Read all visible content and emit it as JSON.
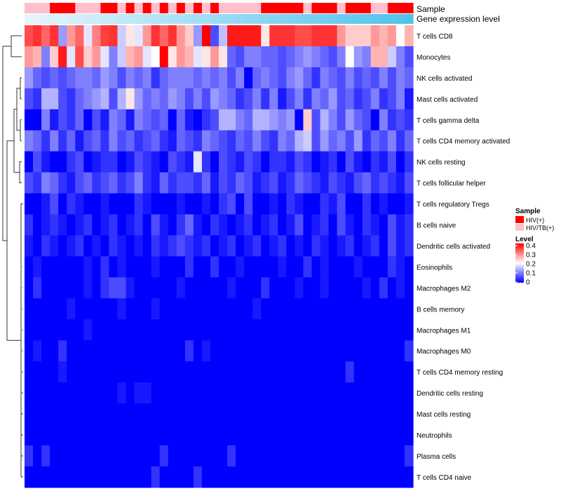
{
  "chart_data": {
    "type": "heatmap",
    "title": "",
    "annotation_tracks": [
      {
        "name": "Sample"
      },
      {
        "name": "Gene expression level"
      }
    ],
    "rows": [
      "T cells CD8",
      "Monocytes",
      "NK cells activated",
      "Mast cells activated",
      "T cells gamma delta",
      "T cells CD4 memory activated",
      "NK cells resting",
      "T cells follicular helper",
      "T cells regulatory  Tregs",
      "B cells naive",
      "Dendritic cells activated",
      "Eosinophils",
      "Macrophages M2",
      "B cells memory",
      "Macrophages M1",
      "Macrophages M0",
      "T cells CD4 memory resting",
      "Dendritic cells resting",
      "Mast cells resting",
      "Neutrophils",
      "Plasma cells",
      "T cells CD4 naive"
    ],
    "n_samples": 46,
    "sample_groups": [
      "TB",
      "TB",
      "TB",
      "HIV",
      "HIV",
      "HIV",
      "TB",
      "TB",
      "TB",
      "HIV",
      "HIV",
      "TB",
      "HIV",
      "TB",
      "HIV",
      "TB",
      "HIV",
      "TB",
      "HIV",
      "TB",
      "HIV",
      "TB",
      "HIV",
      "TB",
      "TB",
      "TB",
      "TB",
      "TB",
      "HIV",
      "HIV",
      "HIV",
      "HIV",
      "HIV",
      "TB",
      "HIV",
      "HIV",
      "HIV",
      "TB",
      "HIV",
      "HIV",
      "HIV",
      "TB",
      "TB",
      "HIV",
      "HIV",
      "HIV"
    ],
    "legend_sample": {
      "title": "Sample",
      "entries": [
        {
          "label": "HIV(+)",
          "color": "#ff0000"
        },
        {
          "label": "HIV/TB(+)",
          "color": "#ffc0cb"
        }
      ]
    },
    "legend_level": {
      "title": "Level",
      "ticks": [
        "0.4",
        "0.3",
        "0.2",
        "0.1",
        "0"
      ],
      "range": [
        0,
        0.4
      ],
      "colors": {
        "low": "#0000ff",
        "mid": "#ffffff",
        "high": "#ff0000"
      }
    },
    "row_levels": {
      "T cells CD8": [
        0.34,
        0.36,
        0.32,
        0.36,
        0.12,
        0.28,
        0.32,
        0.18,
        0.3,
        0.35,
        0.36,
        0.16,
        0.22,
        0.18,
        0.28,
        0.36,
        0.32,
        0.36,
        0.28,
        0.24,
        0.12,
        0.4,
        0.06,
        0.15,
        0.38,
        0.38,
        0.38,
        0.38,
        0.22,
        0.36,
        0.36,
        0.36,
        0.34,
        0.34,
        0.36,
        0.36,
        0.36,
        0.28,
        0.24,
        0.24,
        0.24,
        0.28,
        0.26,
        0.28,
        0.2,
        0.26
      ],
      "Monocytes": [
        0.28,
        0.26,
        0.1,
        0.24,
        0.38,
        0.18,
        0.34,
        0.24,
        0.28,
        0.18,
        0.1,
        0.16,
        0.26,
        0.28,
        0.18,
        0.2,
        0.4,
        0.22,
        0.28,
        0.26,
        0.18,
        0.22,
        0.28,
        0.22,
        0.08,
        0.06,
        0.1,
        0.1,
        0.08,
        0.08,
        0.06,
        0.08,
        0.1,
        0.12,
        0.1,
        0.08,
        0.06,
        0.1,
        0.2,
        0.12,
        0.1,
        0.26,
        0.26,
        0.16,
        0.1,
        0.06
      ],
      "NK cells activated": [
        0.12,
        0.08,
        0.06,
        0.08,
        0.06,
        0.08,
        0.1,
        0.1,
        0.08,
        0.12,
        0.1,
        0.06,
        0.1,
        0.08,
        0.1,
        0.04,
        0.08,
        0.1,
        0.1,
        0.1,
        0.08,
        0.1,
        0.08,
        0.1,
        0.06,
        0.1,
        0.0,
        0.08,
        0.1,
        0.08,
        0.06,
        0.1,
        0.12,
        0.08,
        0.04,
        0.1,
        0.08,
        0.06,
        0.1,
        0.06,
        0.08,
        0.06,
        0.1,
        0.06,
        0.1,
        0.08
      ],
      "Mast cells activated": [
        0.06,
        0.04,
        0.14,
        0.14,
        0.06,
        0.04,
        0.08,
        0.1,
        0.12,
        0.14,
        0.06,
        0.14,
        0.22,
        0.12,
        0.08,
        0.1,
        0.08,
        0.12,
        0.1,
        0.06,
        0.1,
        0.06,
        0.12,
        0.1,
        0.08,
        0.04,
        0.06,
        0.1,
        0.04,
        0.1,
        0.02,
        0.06,
        0.1,
        0.04,
        0.1,
        0.08,
        0.12,
        0.06,
        0.08,
        0.04,
        0.06,
        0.1,
        0.04,
        0.06,
        0.1,
        0.02
      ],
      "T cells gamma delta": [
        0.0,
        0.0,
        0.1,
        0.02,
        0.06,
        0.04,
        0.08,
        0.0,
        0.06,
        0.02,
        0.1,
        0.08,
        0.02,
        0.1,
        0.08,
        0.06,
        0.08,
        0.0,
        0.08,
        0.02,
        0.0,
        0.04,
        0.06,
        0.14,
        0.14,
        0.1,
        0.08,
        0.14,
        0.14,
        0.12,
        0.1,
        0.12,
        0.0,
        0.24,
        0.06,
        0.14,
        0.1,
        0.06,
        0.12,
        0.08,
        0.06,
        0.0,
        0.1,
        0.04,
        0.06,
        0.04
      ],
      "T cells CD4 memory activated": [
        0.1,
        0.08,
        0.04,
        0.1,
        0.04,
        0.08,
        0.02,
        0.06,
        0.08,
        0.04,
        0.1,
        0.06,
        0.08,
        0.04,
        0.06,
        0.08,
        0.04,
        0.02,
        0.08,
        0.06,
        0.04,
        0.1,
        0.08,
        0.06,
        0.04,
        0.08,
        0.06,
        0.1,
        0.06,
        0.04,
        0.1,
        0.08,
        0.14,
        0.16,
        0.06,
        0.12,
        0.08,
        0.1,
        0.06,
        0.12,
        0.04,
        0.08,
        0.06,
        0.1,
        0.04,
        0.08
      ],
      "NK cells resting": [
        0.0,
        0.06,
        0.02,
        0.0,
        0.0,
        0.04,
        0.06,
        0.0,
        0.02,
        0.04,
        0.04,
        0.0,
        0.02,
        0.06,
        0.04,
        0.02,
        0.0,
        0.06,
        0.04,
        0.02,
        0.18,
        0.04,
        0.0,
        0.06,
        0.04,
        0.02,
        0.06,
        0.04,
        0.0,
        0.04,
        0.04,
        0.02,
        0.06,
        0.04,
        0.0,
        0.02,
        0.04,
        0.0,
        0.06,
        0.02,
        0.0,
        0.04,
        0.02,
        0.06,
        0.0,
        0.04
      ],
      "T cells follicular helper": [
        0.06,
        0.04,
        0.1,
        0.08,
        0.04,
        0.02,
        0.06,
        0.08,
        0.04,
        0.06,
        0.08,
        0.04,
        0.06,
        0.1,
        0.04,
        0.02,
        0.08,
        0.04,
        0.06,
        0.06,
        0.04,
        0.08,
        0.02,
        0.06,
        0.04,
        0.08,
        0.06,
        0.02,
        0.04,
        0.06,
        0.02,
        0.04,
        0.08,
        0.06,
        0.04,
        0.02,
        0.06,
        0.04,
        0.02,
        0.06,
        0.08,
        0.04,
        0.06,
        0.04,
        0.02,
        0.06
      ],
      "T cells regulatory  Tregs": [
        0.0,
        0.0,
        0.02,
        0.06,
        0.0,
        0.04,
        0.02,
        0.0,
        0.0,
        0.02,
        0.0,
        0.0,
        0.0,
        0.04,
        0.02,
        0.0,
        0.0,
        0.0,
        0.02,
        0.0,
        0.0,
        0.02,
        0.0,
        0.04,
        0.06,
        0.0,
        0.06,
        0.0,
        0.0,
        0.02,
        0.0,
        0.04,
        0.02,
        0.0,
        0.0,
        0.04,
        0.02,
        0.06,
        0.0,
        0.0,
        0.04,
        0.0,
        0.02,
        0.0,
        0.0,
        0.02
      ],
      "B cells naive": [
        0.04,
        0.0,
        0.02,
        0.04,
        0.02,
        0.0,
        0.02,
        0.04,
        0.0,
        0.02,
        0.04,
        0.0,
        0.02,
        0.04,
        0.0,
        0.06,
        0.02,
        0.0,
        0.04,
        0.08,
        0.02,
        0.0,
        0.04,
        0.02,
        0.0,
        0.02,
        0.04,
        0.0,
        0.02,
        0.04,
        0.0,
        0.02,
        0.06,
        0.0,
        0.02,
        0.04,
        0.0,
        0.06,
        0.02,
        0.0,
        0.04,
        0.02,
        0.0,
        0.06,
        0.02,
        0.04
      ],
      "Dendritic cells activated": [
        0.02,
        0.0,
        0.04,
        0.02,
        0.0,
        0.02,
        0.04,
        0.0,
        0.02,
        0.0,
        0.04,
        0.02,
        0.0,
        0.02,
        0.0,
        0.04,
        0.02,
        0.04,
        0.06,
        0.04,
        0.02,
        0.04,
        0.0,
        0.02,
        0.04,
        0.0,
        0.02,
        0.04,
        0.0,
        0.02,
        0.04,
        0.0,
        0.02,
        0.0,
        0.04,
        0.02,
        0.0,
        0.02,
        0.04,
        0.0,
        0.02,
        0.04,
        0.0,
        0.06,
        0.02,
        0.04
      ],
      "Eosinophils": [
        0.0,
        0.02,
        0.0,
        0.0,
        0.0,
        0.0,
        0.0,
        0.02,
        0.0,
        0.04,
        0.0,
        0.02,
        0.0,
        0.0,
        0.0,
        0.02,
        0.0,
        0.0,
        0.0,
        0.04,
        0.0,
        0.0,
        0.04,
        0.0,
        0.0,
        0.02,
        0.0,
        0.0,
        0.0,
        0.0,
        0.02,
        0.0,
        0.0,
        0.04,
        0.0,
        0.02,
        0.0,
        0.0,
        0.0,
        0.02,
        0.0,
        0.0,
        0.0,
        0.04,
        0.02,
        0.0
      ],
      "Macrophages M2": [
        0.0,
        0.04,
        0.0,
        0.0,
        0.0,
        0.0,
        0.0,
        0.02,
        0.0,
        0.04,
        0.06,
        0.06,
        0.02,
        0.0,
        0.0,
        0.0,
        0.0,
        0.0,
        0.02,
        0.0,
        0.0,
        0.0,
        0.0,
        0.0,
        0.02,
        0.0,
        0.0,
        0.0,
        0.04,
        0.0,
        0.0,
        0.0,
        0.02,
        0.0,
        0.0,
        0.02,
        0.0,
        0.0,
        0.0,
        0.0,
        0.02,
        0.0,
        0.04,
        0.0,
        0.02,
        0.0
      ],
      "B cells memory": [
        0.0,
        0.0,
        0.0,
        0.0,
        0.0,
        0.02,
        0.0,
        0.0,
        0.0,
        0.0,
        0.0,
        0.02,
        0.0,
        0.0,
        0.0,
        0.02,
        0.0,
        0.0,
        0.0,
        0.0,
        0.0,
        0.0,
        0.0,
        0.0,
        0.0,
        0.0,
        0.0,
        0.02,
        0.0,
        0.0,
        0.0,
        0.0,
        0.0,
        0.0,
        0.0,
        0.0,
        0.0,
        0.0,
        0.0,
        0.0,
        0.0,
        0.0,
        0.0,
        0.0,
        0.0,
        0.0
      ],
      "Macrophages M1": [
        0.0,
        0.0,
        0.0,
        0.0,
        0.0,
        0.0,
        0.0,
        0.02,
        0.0,
        0.0,
        0.0,
        0.0,
        0.0,
        0.0,
        0.0,
        0.0,
        0.0,
        0.0,
        0.0,
        0.0,
        0.0,
        0.0,
        0.0,
        0.0,
        0.0,
        0.0,
        0.0,
        0.0,
        0.0,
        0.0,
        0.0,
        0.0,
        0.0,
        0.0,
        0.0,
        0.0,
        0.0,
        0.0,
        0.0,
        0.0,
        0.0,
        0.0,
        0.0,
        0.0,
        0.0,
        0.0
      ],
      "Macrophages M0": [
        0.0,
        0.02,
        0.0,
        0.0,
        0.04,
        0.0,
        0.0,
        0.0,
        0.0,
        0.0,
        0.0,
        0.0,
        0.0,
        0.0,
        0.0,
        0.0,
        0.0,
        0.0,
        0.0,
        0.04,
        0.0,
        0.02,
        0.0,
        0.0,
        0.0,
        0.0,
        0.0,
        0.0,
        0.0,
        0.0,
        0.0,
        0.0,
        0.0,
        0.0,
        0.0,
        0.0,
        0.0,
        0.0,
        0.0,
        0.0,
        0.0,
        0.0,
        0.0,
        0.0,
        0.0,
        0.04
      ],
      "T cells CD4 memory resting": [
        0.0,
        0.0,
        0.0,
        0.0,
        0.02,
        0.0,
        0.0,
        0.0,
        0.0,
        0.0,
        0.0,
        0.0,
        0.0,
        0.0,
        0.0,
        0.0,
        0.0,
        0.0,
        0.0,
        0.0,
        0.0,
        0.0,
        0.0,
        0.0,
        0.0,
        0.0,
        0.0,
        0.0,
        0.0,
        0.0,
        0.0,
        0.0,
        0.0,
        0.0,
        0.0,
        0.0,
        0.0,
        0.0,
        0.04,
        0.0,
        0.0,
        0.0,
        0.0,
        0.0,
        0.0,
        0.0
      ],
      "Dendritic cells resting": [
        0.0,
        0.0,
        0.0,
        0.0,
        0.0,
        0.0,
        0.0,
        0.0,
        0.0,
        0.0,
        0.0,
        0.02,
        0.0,
        0.02,
        0.02,
        0.0,
        0.0,
        0.0,
        0.0,
        0.0,
        0.0,
        0.0,
        0.0,
        0.0,
        0.0,
        0.0,
        0.0,
        0.0,
        0.0,
        0.0,
        0.0,
        0.0,
        0.0,
        0.0,
        0.0,
        0.0,
        0.0,
        0.0,
        0.0,
        0.0,
        0.0,
        0.0,
        0.0,
        0.0,
        0.0,
        0.0
      ],
      "Mast cells resting": [
        0.0,
        0.0,
        0.0,
        0.0,
        0.0,
        0.0,
        0.0,
        0.0,
        0.0,
        0.0,
        0.0,
        0.0,
        0.0,
        0.0,
        0.0,
        0.0,
        0.0,
        0.0,
        0.0,
        0.0,
        0.0,
        0.0,
        0.0,
        0.0,
        0.0,
        0.0,
        0.0,
        0.0,
        0.0,
        0.0,
        0.0,
        0.0,
        0.0,
        0.0,
        0.0,
        0.0,
        0.0,
        0.0,
        0.0,
        0.0,
        0.0,
        0.0,
        0.0,
        0.0,
        0.0,
        0.0
      ],
      "Neutrophils": [
        0.0,
        0.0,
        0.0,
        0.0,
        0.0,
        0.0,
        0.0,
        0.0,
        0.0,
        0.0,
        0.0,
        0.0,
        0.0,
        0.0,
        0.0,
        0.0,
        0.0,
        0.0,
        0.0,
        0.0,
        0.0,
        0.0,
        0.0,
        0.0,
        0.0,
        0.0,
        0.0,
        0.0,
        0.0,
        0.0,
        0.0,
        0.0,
        0.0,
        0.0,
        0.0,
        0.0,
        0.0,
        0.0,
        0.0,
        0.0,
        0.0,
        0.0,
        0.0,
        0.0,
        0.0,
        0.0
      ],
      "Plasma cells": [
        0.04,
        0.0,
        0.04,
        0.0,
        0.0,
        0.0,
        0.0,
        0.0,
        0.0,
        0.0,
        0.0,
        0.0,
        0.0,
        0.0,
        0.0,
        0.0,
        0.04,
        0.0,
        0.0,
        0.0,
        0.0,
        0.0,
        0.0,
        0.0,
        0.04,
        0.0,
        0.0,
        0.0,
        0.0,
        0.0,
        0.0,
        0.0,
        0.0,
        0.0,
        0.0,
        0.0,
        0.0,
        0.0,
        0.0,
        0.0,
        0.0,
        0.0,
        0.0,
        0.0,
        0.0,
        0.04
      ],
      "T cells CD4 naive": [
        0.0,
        0.0,
        0.0,
        0.0,
        0.0,
        0.0,
        0.0,
        0.0,
        0.0,
        0.0,
        0.0,
        0.0,
        0.0,
        0.0,
        0.0,
        0.04,
        0.0,
        0.0,
        0.0,
        0.0,
        0.04,
        0.0,
        0.0,
        0.0,
        0.0,
        0.0,
        0.0,
        0.0,
        0.0,
        0.0,
        0.0,
        0.0,
        0.0,
        0.0,
        0.0,
        0.0,
        0.0,
        0.0,
        0.0,
        0.0,
        0.0,
        0.0,
        0.0,
        0.0,
        0.0,
        0.0
      ]
    }
  }
}
